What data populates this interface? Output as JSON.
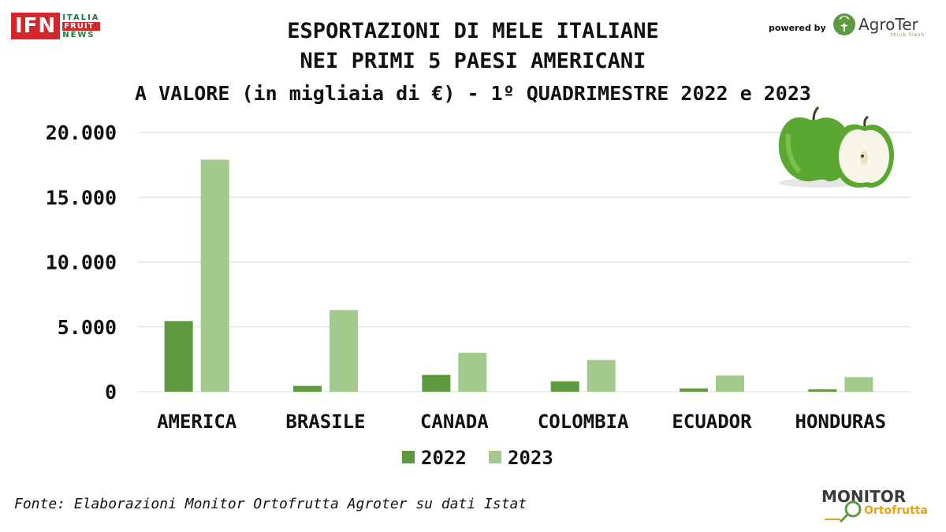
{
  "header": {
    "title_line1": "ESPORTAZIONI DI MELE ITALIANE",
    "title_line2": "NEI PRIMI 5 PAESI AMERICANI",
    "subtitle": "A VALORE (in migliaia di €) - 1º QUADRIMESTRE 2022 e 2023"
  },
  "logos": {
    "ifn_main": "IFN",
    "ifn_line1": "ITALIA",
    "ifn_line2": "FRUIT",
    "ifn_line3": "NEWS",
    "powered_by": "powered by",
    "agroter_name": "AgroTer",
    "agroter_tagline": "think fresh",
    "monitor_top": "MONITOR",
    "monitor_bottom": "Ortofrutta"
  },
  "footer": {
    "source": "Fonte: Elaborazioni Monitor Ortofrutta Agroter su dati Istat"
  },
  "colors": {
    "series_2022": "#5d9a3f",
    "series_2023": "#a3c98d",
    "gridline": "#d9d9d9",
    "ifn_red": "#d4262b"
  },
  "chart_data": {
    "type": "bar",
    "categories": [
      "AMERICA",
      "BRASILE",
      "CANADA",
      "COLOMBIA",
      "ECUADOR",
      "HONDURAS"
    ],
    "series": [
      {
        "name": "2022",
        "values": [
          5450,
          450,
          1300,
          800,
          250,
          180
        ]
      },
      {
        "name": "2023",
        "values": [
          17900,
          6300,
          3000,
          2450,
          1250,
          1130
        ]
      }
    ],
    "ylim": [
      0,
      20000
    ],
    "yticks": [
      "0",
      "5.000",
      "10.000",
      "15.000",
      "20.000"
    ],
    "ytick_values": [
      0,
      5000,
      10000,
      15000,
      20000
    ],
    "grid": true,
    "legend_position": "bottom-center"
  }
}
